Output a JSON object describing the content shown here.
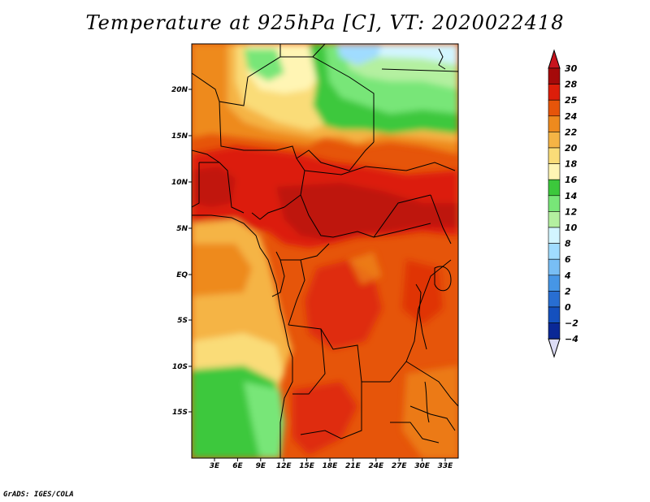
{
  "title": "Temperature at 925hPa [C], VT: 2020022418",
  "credit": "GrADS: IGES/COLA",
  "map": {
    "lat_labels": [
      "20N",
      "15N",
      "10N",
      "5N",
      "EQ",
      "5S",
      "10S",
      "15S"
    ],
    "lon_labels": [
      "3E",
      "6E",
      "9E",
      "12E",
      "15E",
      "18E",
      "21E",
      "24E",
      "27E",
      "30E",
      "33E"
    ]
  },
  "colorbar": {
    "labels": [
      "30",
      "28",
      "25",
      "24",
      "22",
      "20",
      "18",
      "16",
      "14",
      "12",
      "10",
      "8",
      "6",
      "4",
      "2",
      "0",
      "-2",
      "-4"
    ],
    "colors": [
      "#a50a0a",
      "#dc1e0a",
      "#e6550a",
      "#ee8a1e",
      "#f5b445",
      "#fadc78",
      "#fff5b4",
      "#3cc83c",
      "#78e678",
      "#b4f0a0",
      "#d2f5ff",
      "#a0dcff",
      "#78bef5",
      "#4696e6",
      "#286ed2",
      "#1450be",
      "#0a2896",
      "#000050"
    ]
  }
}
